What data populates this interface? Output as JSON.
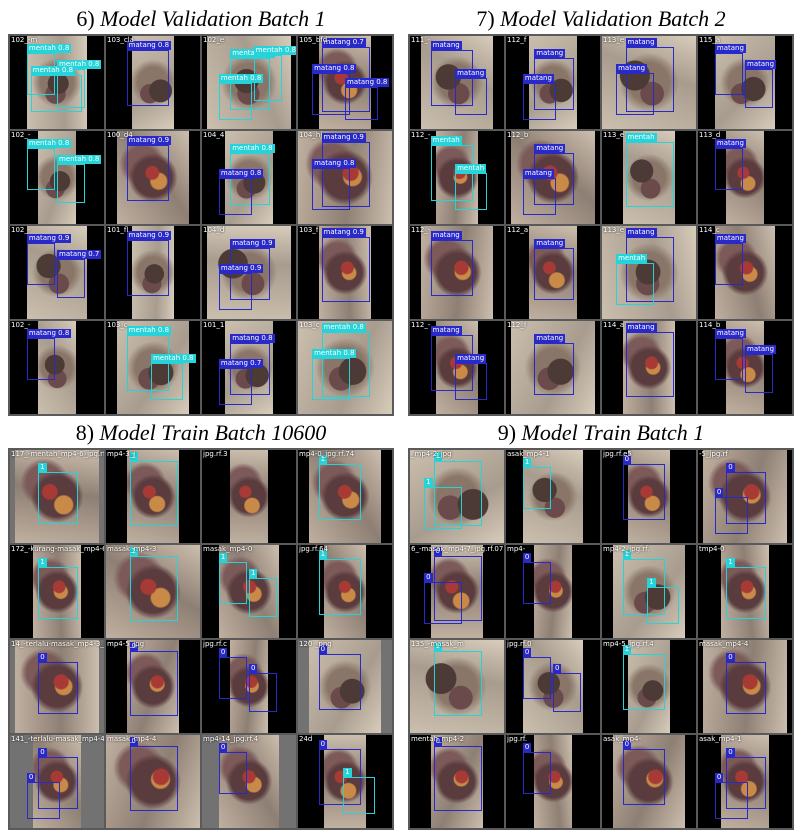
{
  "colors": {
    "mentah": "#25d3d8",
    "matang": "#2929c9",
    "grid_bg": "#5a5a5a",
    "pad_grey": "#727272"
  },
  "panels": [
    {
      "name": "panel-6",
      "number": "6)",
      "title": "Model Validation Batch 1",
      "cells": [
        {
          "file": "102_-m",
          "bg": "pad-black",
          "photo": "sand",
          "boxes": [
            {
              "label": "mentah 0.8",
              "color": "cyan"
            },
            {
              "label": "mentah 0.8",
              "color": "cyan"
            },
            {
              "label": "mentah 0.8",
              "color": "cyan"
            }
          ]
        },
        {
          "file": "103_cla",
          "bg": "pad-black",
          "photo": "sand",
          "boxes": [
            {
              "label": "matang 0.8",
              "color": "blue"
            }
          ]
        },
        {
          "file": "102_e",
          "bg": "pad-black",
          "photo": "sand",
          "boxes": [
            {
              "label": "mentah 0.8",
              "color": "cyan"
            },
            {
              "label": "mentah 0.8",
              "color": "cyan"
            },
            {
              "label": "mentah 0.8",
              "color": "cyan"
            }
          ]
        },
        {
          "file": "105_bfd",
          "bg": "pad-black",
          "photo": "fruit",
          "boxes": [
            {
              "label": "matang 0.7",
              "color": "blue"
            },
            {
              "label": "matang 0.8",
              "color": "blue"
            },
            {
              "label": "matang 0.8",
              "color": "blue"
            }
          ]
        },
        {
          "file": "102_-",
          "bg": "pad-black",
          "photo": "sand",
          "boxes": [
            {
              "label": "mentah 0.8",
              "color": "cyan"
            },
            {
              "label": "mentah 0.8",
              "color": "cyan"
            }
          ]
        },
        {
          "file": "100_d4",
          "bg": "pad-black",
          "photo": "fruit",
          "boxes": [
            {
              "label": "matang 0.9",
              "color": "blue"
            }
          ]
        },
        {
          "file": "104_4",
          "bg": "pad-black",
          "photo": "sand",
          "boxes": [
            {
              "label": "mentah 0.8",
              "color": "cyan"
            },
            {
              "label": "matang 0.8",
              "color": "blue"
            }
          ]
        },
        {
          "file": "104_hj",
          "bg": "pad-black",
          "photo": "fruit",
          "boxes": [
            {
              "label": "matang 0.9",
              "color": "blue"
            },
            {
              "label": "matang 0.8",
              "color": "blue"
            }
          ]
        },
        {
          "file": "102_-",
          "bg": "pad-black",
          "photo": "sand",
          "boxes": [
            {
              "label": "matang 0.9",
              "color": "blue"
            },
            {
              "label": "matang 0.7",
              "color": "blue"
            }
          ]
        },
        {
          "file": "101_fl",
          "bg": "pad-black",
          "photo": "sand",
          "boxes": [
            {
              "label": "matang 0.9",
              "color": "blue"
            }
          ]
        },
        {
          "file": "104_d",
          "bg": "pad-black",
          "photo": "sand",
          "boxes": [
            {
              "label": "matang 0.9",
              "color": "blue"
            },
            {
              "label": "matang 0.9",
              "color": "blue"
            }
          ]
        },
        {
          "file": "103_f",
          "bg": "pad-black",
          "photo": "fruit",
          "boxes": [
            {
              "label": "matang 0.9",
              "color": "blue"
            }
          ]
        },
        {
          "file": "102_-",
          "bg": "pad-black",
          "photo": "sand",
          "boxes": [
            {
              "label": "matang 0.8",
              "color": "blue"
            }
          ]
        },
        {
          "file": "103_c",
          "bg": "pad-black",
          "photo": "sand",
          "boxes": [
            {
              "label": "mentah 0.8",
              "color": "cyan"
            },
            {
              "label": "mentah 0.8",
              "color": "cyan"
            }
          ]
        },
        {
          "file": "101_1",
          "bg": "pad-black",
          "photo": "sand",
          "boxes": [
            {
              "label": "matang 0.8",
              "color": "blue"
            },
            {
              "label": "matang 0.7",
              "color": "blue"
            }
          ]
        },
        {
          "file": "103_c",
          "bg": "pad-black",
          "photo": "sand",
          "boxes": [
            {
              "label": "mentah 0.8",
              "color": "cyan"
            },
            {
              "label": "mentah 0.8",
              "color": "cyan"
            }
          ]
        }
      ]
    },
    {
      "name": "panel-7",
      "number": "7)",
      "title": "Model Validation Batch 2",
      "cells": [
        {
          "file": "111_-",
          "bg": "pad-black",
          "photo": "sand",
          "boxes": [
            {
              "label": "matang",
              "color": "blue"
            },
            {
              "label": "matang",
              "color": "blue"
            }
          ]
        },
        {
          "file": "112_f",
          "bg": "pad-black",
          "photo": "sand",
          "boxes": [
            {
              "label": "matang",
              "color": "blue"
            },
            {
              "label": "matang",
              "color": "blue"
            }
          ]
        },
        {
          "file": "113_e",
          "bg": "pad-black",
          "photo": "sand",
          "boxes": [
            {
              "label": "matang",
              "color": "blue"
            },
            {
              "label": "matang",
              "color": "blue"
            }
          ]
        },
        {
          "file": "115_a",
          "bg": "pad-black",
          "photo": "sand",
          "boxes": [
            {
              "label": "matang",
              "color": "blue"
            },
            {
              "label": "matang",
              "color": "blue"
            }
          ]
        },
        {
          "file": "112_-",
          "bg": "pad-black",
          "photo": "fruit",
          "boxes": [
            {
              "label": "mentah",
              "color": "cyan"
            },
            {
              "label": "mentah",
              "color": "cyan"
            }
          ]
        },
        {
          "file": "112_b",
          "bg": "pad-black",
          "photo": "fruit",
          "boxes": [
            {
              "label": "matang",
              "color": "blue"
            },
            {
              "label": "matang",
              "color": "blue"
            }
          ]
        },
        {
          "file": "113_e",
          "bg": "pad-black",
          "photo": "sand",
          "boxes": [
            {
              "label": "mentah",
              "color": "cyan"
            }
          ]
        },
        {
          "file": "113_d",
          "bg": "pad-black",
          "photo": "fruit",
          "boxes": [
            {
              "label": "matang",
              "color": "blue"
            }
          ]
        },
        {
          "file": "112_-",
          "bg": "pad-black",
          "photo": "fruit",
          "boxes": [
            {
              "label": "matang",
              "color": "blue"
            }
          ]
        },
        {
          "file": "112_a",
          "bg": "pad-black",
          "photo": "fruit",
          "boxes": [
            {
              "label": "matang",
              "color": "blue"
            }
          ]
        },
        {
          "file": "113_e",
          "bg": "pad-black",
          "photo": "sand",
          "boxes": [
            {
              "label": "matang",
              "color": "blue"
            },
            {
              "label": "mentah",
              "color": "cyan"
            }
          ]
        },
        {
          "file": "114_c",
          "bg": "pad-black",
          "photo": "fruit",
          "boxes": [
            {
              "label": "matang",
              "color": "blue"
            }
          ]
        },
        {
          "file": "112_-",
          "bg": "pad-black",
          "photo": "fruit",
          "boxes": [
            {
              "label": "matang",
              "color": "blue"
            },
            {
              "label": "matang",
              "color": "blue"
            }
          ]
        },
        {
          "file": "112_f",
          "bg": "pad-black",
          "photo": "sand",
          "boxes": [
            {
              "label": "matang",
              "color": "blue"
            }
          ]
        },
        {
          "file": "114_a",
          "bg": "pad-black",
          "photo": "fruit",
          "boxes": [
            {
              "label": "matang",
              "color": "blue"
            }
          ]
        },
        {
          "file": "114_b",
          "bg": "pad-black",
          "photo": "fruit",
          "boxes": [
            {
              "label": "matang",
              "color": "blue"
            },
            {
              "label": "matang",
              "color": "blue"
            }
          ]
        }
      ]
    },
    {
      "name": "panel-8",
      "number": "8)",
      "title": "Model Train Batch 10600",
      "cells": [
        {
          "file": "117_-mentah_mp4-6_jpg.rf.c",
          "bg": "pad-grey",
          "photo": "fruit",
          "boxes": [
            {
              "label": "1",
              "color": "cyan"
            }
          ]
        },
        {
          "file": "mp4-3_j",
          "bg": "pad-black",
          "photo": "fruit",
          "boxes": [
            {
              "label": "1",
              "color": "cyan"
            }
          ]
        },
        {
          "file": "jpg.rf.3",
          "bg": "pad-black",
          "photo": "fruit",
          "boxes": []
        },
        {
          "file": "mp4-0_jpg.rf.74",
          "bg": "pad-black",
          "photo": "fruit",
          "boxes": [
            {
              "label": "1",
              "color": "cyan"
            }
          ]
        },
        {
          "file": "172_-kurang-masak_mp4-6",
          "bg": "pad-black",
          "photo": "fruit",
          "boxes": [
            {
              "label": "1",
              "color": "cyan"
            }
          ]
        },
        {
          "file": "masak_mp4-3",
          "bg": "pad-grey",
          "photo": "fruit",
          "boxes": [
            {
              "label": "1",
              "color": "cyan"
            }
          ]
        },
        {
          "file": "masak_mp4-0",
          "bg": "pad-black",
          "photo": "fruit",
          "boxes": [
            {
              "label": "1",
              "color": "cyan"
            },
            {
              "label": "1",
              "color": "cyan"
            }
          ]
        },
        {
          "file": "jpg.rf.64",
          "bg": "pad-black",
          "photo": "fruit",
          "boxes": [
            {
              "label": "1",
              "color": "cyan"
            }
          ]
        },
        {
          "file": "14_-terlalu-masak_mp4-3_jp",
          "bg": "pad-grey",
          "photo": "fruit",
          "boxes": [
            {
              "label": "0",
              "color": "blue"
            }
          ]
        },
        {
          "file": "mp4-5_jpg",
          "bg": "pad-black",
          "photo": "fruit",
          "boxes": [
            {
              "label": "0",
              "color": "blue"
            }
          ]
        },
        {
          "file": "jpg.rf.c",
          "bg": "pad-black",
          "photo": "fruit",
          "boxes": [
            {
              "label": "0",
              "color": "blue"
            },
            {
              "label": "0",
              "color": "blue"
            }
          ]
        },
        {
          "file": "120-_png",
          "bg": "pad-grey",
          "photo": "sand",
          "boxes": [
            {
              "label": "0",
              "color": "blue"
            }
          ]
        },
        {
          "file": "141_-terlalu-masak_mp4-4_j",
          "bg": "pad-grey",
          "photo": "fruit",
          "boxes": [
            {
              "label": "0",
              "color": "blue"
            },
            {
              "label": "0",
              "color": "blue"
            }
          ]
        },
        {
          "file": "masak_mp4-4",
          "bg": "pad-black",
          "photo": "fruit",
          "boxes": [
            {
              "label": "0",
              "color": "blue"
            }
          ]
        },
        {
          "file": "mp4-14_jpg.rf.4",
          "bg": "pad-grey",
          "photo": "fruit",
          "boxes": [
            {
              "label": "0",
              "color": "blue"
            }
          ]
        },
        {
          "file": "24d",
          "bg": "pad-black",
          "photo": "fruit",
          "boxes": [
            {
              "label": "0",
              "color": "blue"
            },
            {
              "label": "1",
              "color": "cyan"
            }
          ]
        }
      ]
    },
    {
      "name": "panel-9",
      "number": "9)",
      "title": "Model Train Batch 1",
      "cells": [
        {
          "file": "_mp4-2_jpg",
          "bg": "pad-black",
          "photo": "sand",
          "boxes": [
            {
              "label": "1",
              "color": "cyan"
            },
            {
              "label": "1",
              "color": "cyan"
            }
          ]
        },
        {
          "file": "asak_mp4-1",
          "bg": "pad-black",
          "photo": "sand",
          "boxes": [
            {
              "label": "1",
              "color": "cyan"
            }
          ]
        },
        {
          "file": "jpg.rf.e5",
          "bg": "pad-black",
          "photo": "fruit",
          "boxes": [
            {
              "label": "0",
              "color": "blue"
            }
          ]
        },
        {
          "file": "-5_jpg.rf",
          "bg": "pad-black",
          "photo": "fruit",
          "boxes": [
            {
              "label": "0",
              "color": "blue"
            },
            {
              "label": "0",
              "color": "blue"
            }
          ]
        },
        {
          "file": "6_-masak_mp4-7_jpg.rf.07",
          "bg": "pad-black",
          "photo": "fruit",
          "boxes": [
            {
              "label": "0",
              "color": "blue"
            },
            {
              "label": "0",
              "color": "blue"
            }
          ]
        },
        {
          "file": "mp4-",
          "bg": "pad-black",
          "photo": "fruit",
          "boxes": [
            {
              "label": "0",
              "color": "blue"
            }
          ]
        },
        {
          "file": "mp4-2_jpg.rf.",
          "bg": "pad-black",
          "photo": "sand",
          "boxes": [
            {
              "label": "1",
              "color": "cyan"
            },
            {
              "label": "1",
              "color": "cyan"
            }
          ]
        },
        {
          "file": "tmp4-0",
          "bg": "pad-black",
          "photo": "fruit",
          "boxes": [
            {
              "label": "1",
              "color": "cyan"
            }
          ]
        },
        {
          "file": "135_-masak_m",
          "bg": "pad-black",
          "photo": "sand",
          "boxes": [
            {
              "label": "1",
              "color": "cyan"
            }
          ]
        },
        {
          "file": "jpg.rf.0",
          "bg": "pad-black",
          "photo": "sand",
          "boxes": [
            {
              "label": "0",
              "color": "blue"
            },
            {
              "label": "0",
              "color": "blue"
            }
          ]
        },
        {
          "file": "mp4-5_jpg.rf.4",
          "bg": "pad-black",
          "photo": "sand",
          "boxes": [
            {
              "label": "1",
              "color": "cyan"
            }
          ]
        },
        {
          "file": "masak_mp4-4",
          "bg": "pad-black",
          "photo": "fruit",
          "boxes": [
            {
              "label": "0",
              "color": "blue"
            }
          ]
        },
        {
          "file": "mentah_mp4-2",
          "bg": "pad-black",
          "photo": "fruit",
          "boxes": [
            {
              "label": "0",
              "color": "blue"
            }
          ]
        },
        {
          "file": "jpg.rf.",
          "bg": "pad-black",
          "photo": "fruit",
          "boxes": [
            {
              "label": "0",
              "color": "blue"
            }
          ]
        },
        {
          "file": "asak_mp4-",
          "bg": "pad-black",
          "photo": "fruit",
          "boxes": [
            {
              "label": "0",
              "color": "blue"
            }
          ]
        },
        {
          "file": "asak_mp4-1",
          "bg": "pad-black",
          "photo": "fruit",
          "boxes": [
            {
              "label": "0",
              "color": "blue"
            },
            {
              "label": "0",
              "color": "blue"
            }
          ]
        }
      ]
    }
  ]
}
